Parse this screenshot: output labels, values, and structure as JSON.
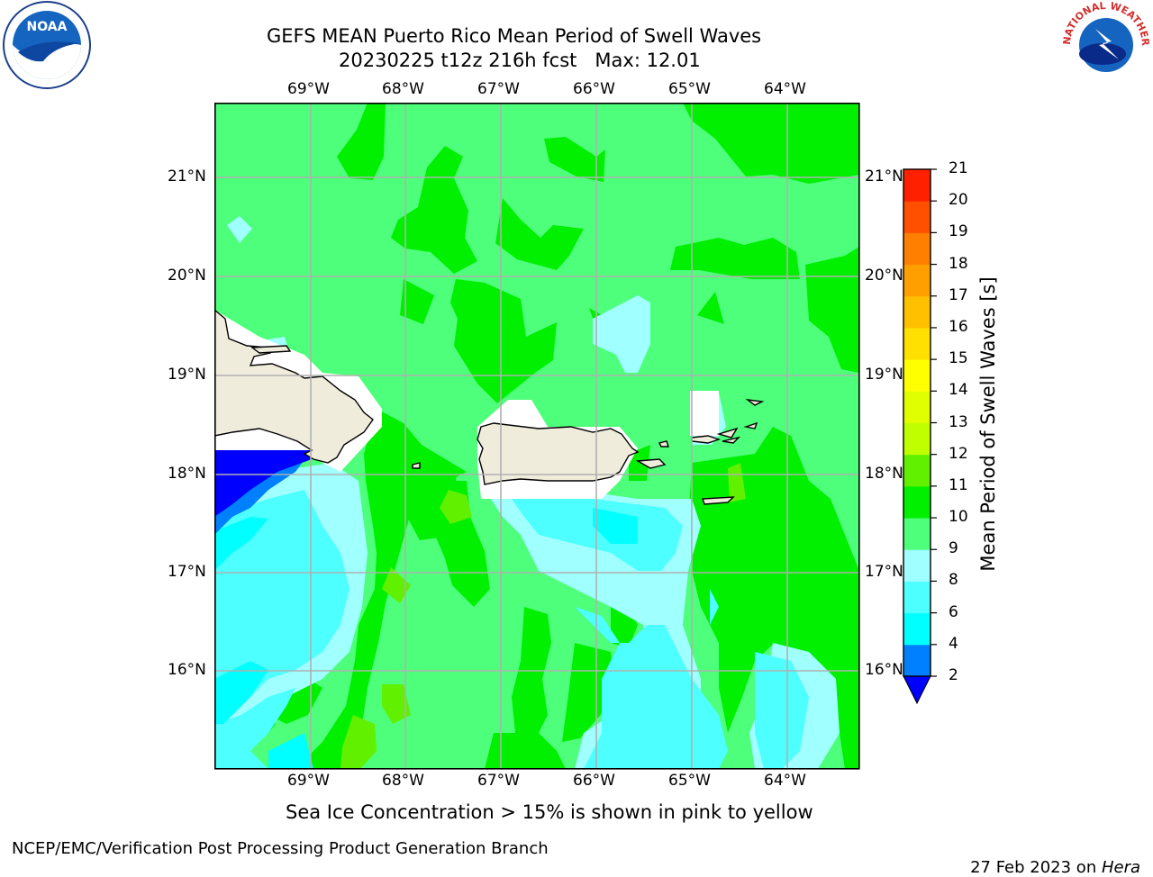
{
  "header": {
    "title_line1": "GEFS MEAN Puerto Rico Mean Period of Swell Waves",
    "title_line2": "20230225 t12z 216h fcst   Max: 12.01"
  },
  "logos": {
    "left": {
      "text": "NOAA",
      "ring_text": "NATIONAL OCEANIC AND ATMOSPHERIC ADMINISTRATION · U.S. DEPARTMENT OF COMMERCE"
    },
    "right": {
      "ring_text": "NATIONAL WEATHER SERVICE"
    }
  },
  "map": {
    "lon_labels": [
      "69°W",
      "68°W",
      "67°W",
      "66°W",
      "65°W",
      "64°W"
    ],
    "lat_labels": [
      "21°N",
      "20°N",
      "19°N",
      "18°N",
      "17°N",
      "16°N"
    ],
    "land_color": "#efecdc",
    "ocean_default_color": "#4dff7a"
  },
  "colorbar": {
    "label": "Mean Period of Swell Waves [s]",
    "ticks": [
      "2",
      "4",
      "6",
      "8",
      "9",
      "10",
      "11",
      "12",
      "13",
      "14",
      "15",
      "16",
      "17",
      "18",
      "19",
      "20",
      "21"
    ],
    "colors": [
      "#0080ff",
      "#00ffff",
      "#4dffff",
      "#a0ffff",
      "#4dff7a",
      "#00f000",
      "#60f000",
      "#c0ff00",
      "#e0ff00",
      "#ffff00",
      "#ffe000",
      "#ffc000",
      "#ffa000",
      "#ff8000",
      "#ff5000",
      "#ff2000"
    ],
    "under_color": "#0000ff"
  },
  "footer": {
    "note": "Sea Ice Concentration > 15% is shown in pink to yellow",
    "left": "NCEP/EMC/Verification Post Processing Product Generation Branch",
    "date": "27 Feb 2023 on ",
    "machine": "Hera"
  }
}
